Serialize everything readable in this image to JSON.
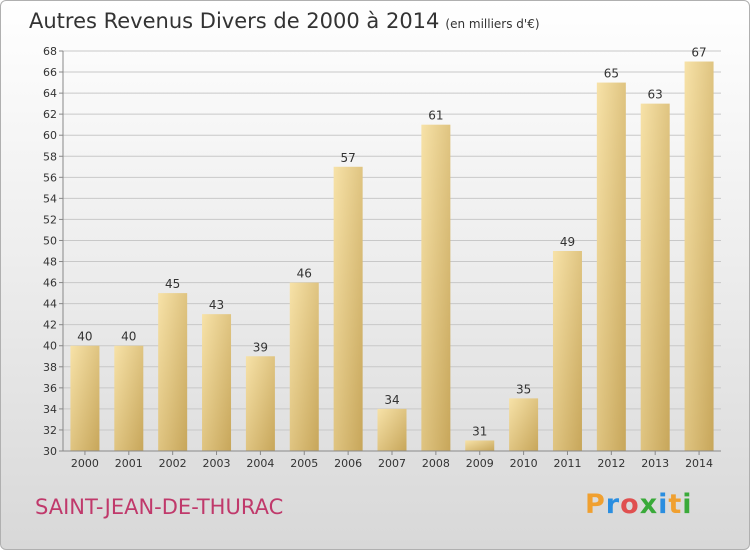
{
  "title": "Autres Revenus Divers de 2000 à 2014",
  "subtitle": "(en milliers d'€)",
  "location": "SAINT-JEAN-DE-THURAC",
  "logo": {
    "text": "Proxiti",
    "colors": [
      "#f0a030",
      "#2a8ee0",
      "#e05050",
      "#3aaa3a",
      "#2a8ee0",
      "#f0a030",
      "#3aaa3a"
    ]
  },
  "chart_data": {
    "type": "bar",
    "categories": [
      "2000",
      "2001",
      "2002",
      "2003",
      "2004",
      "2005",
      "2006",
      "2007",
      "2008",
      "2009",
      "2010",
      "2011",
      "2012",
      "2013",
      "2014"
    ],
    "values": [
      40,
      40,
      45,
      43,
      39,
      46,
      57,
      34,
      61,
      31,
      35,
      49,
      65,
      63,
      67
    ],
    "ylim": [
      30,
      68
    ],
    "yticks": [
      30,
      32,
      34,
      36,
      38,
      40,
      42,
      44,
      46,
      48,
      50,
      52,
      54,
      56,
      58,
      60,
      62,
      64,
      66,
      68
    ],
    "grid": true,
    "bar_color_light": "#f5dc9a",
    "bar_color_dark": "#c9a95c"
  }
}
